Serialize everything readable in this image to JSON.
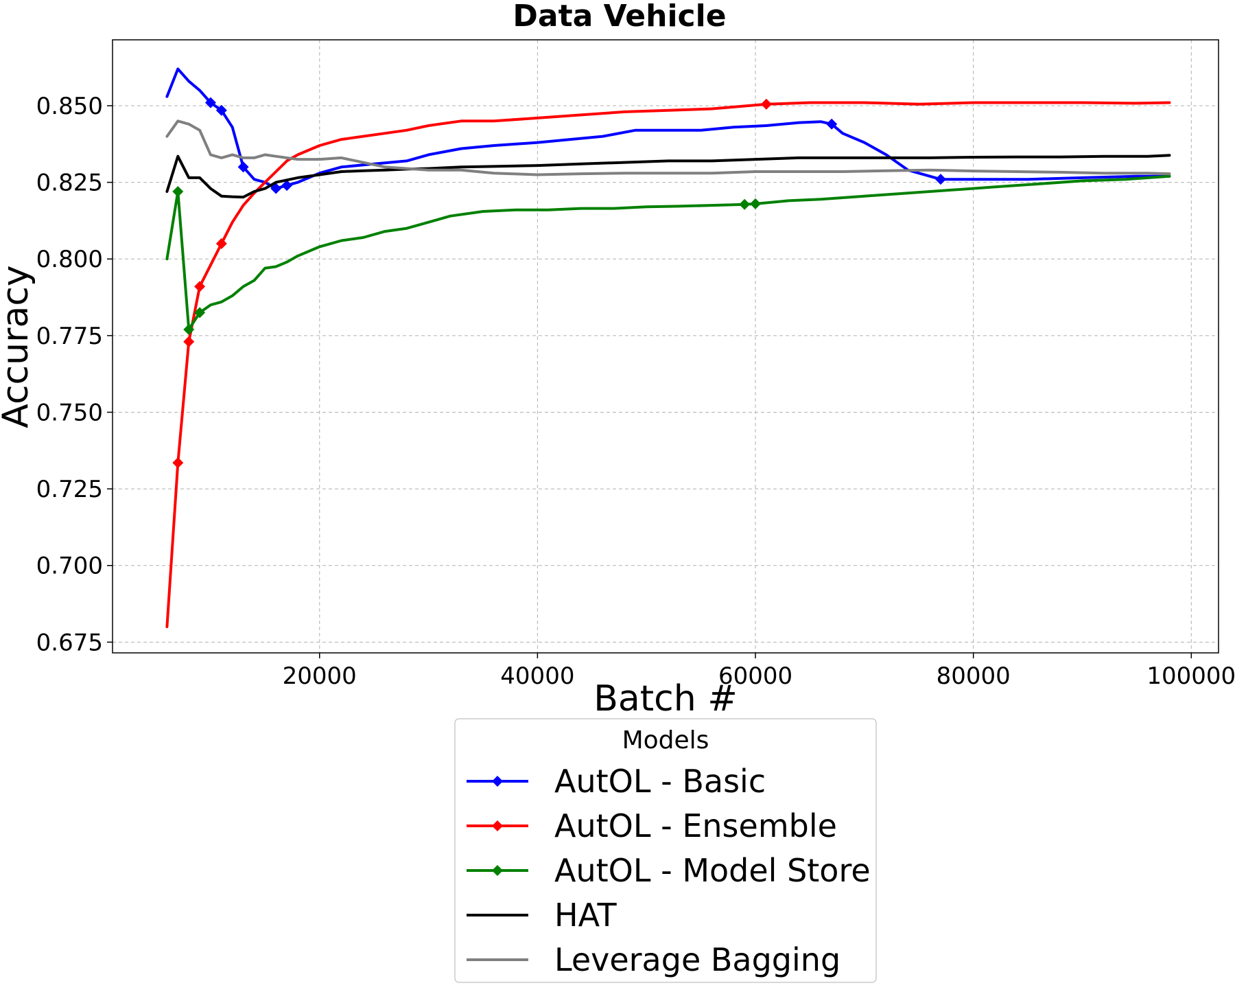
{
  "chart_data": {
    "type": "line",
    "title": "Data Vehicle",
    "xlabel": "Batch #",
    "ylabel": "Accuracy",
    "xlim": [
      1000,
      102500
    ],
    "ylim": [
      0.6715,
      0.8715
    ],
    "xticks": [
      20000,
      40000,
      60000,
      80000,
      100000
    ],
    "xtick_labels": [
      "20000",
      "40000",
      "60000",
      "80000",
      "100000"
    ],
    "yticks": [
      0.675,
      0.7,
      0.725,
      0.75,
      0.775,
      0.8,
      0.825,
      0.85
    ],
    "ytick_labels": [
      "0.675",
      "0.700",
      "0.725",
      "0.750",
      "0.775",
      "0.800",
      "0.825",
      "0.850"
    ],
    "grid": true,
    "legend": {
      "title": "Models",
      "position": "below"
    },
    "series": [
      {
        "name": "AutOL - Basic",
        "color": "#0000ff",
        "marker": "diamond",
        "x": [
          6000,
          7000,
          8000,
          9000,
          10000,
          11000,
          12000,
          13000,
          14000,
          15000,
          16000,
          17000,
          18000,
          20000,
          22000,
          25000,
          28000,
          30000,
          33000,
          36000,
          40000,
          43000,
          46000,
          49000,
          52000,
          55000,
          58000,
          61000,
          64000,
          66000,
          67000,
          68000,
          70000,
          72000,
          74000,
          76000,
          77000,
          80000,
          85000,
          90000,
          95000,
          98000
        ],
        "y": [
          0.853,
          0.862,
          0.858,
          0.855,
          0.851,
          0.8485,
          0.843,
          0.83,
          0.826,
          0.825,
          0.823,
          0.824,
          0.825,
          0.828,
          0.83,
          0.831,
          0.832,
          0.834,
          0.836,
          0.837,
          0.838,
          0.839,
          0.84,
          0.842,
          0.842,
          0.842,
          0.843,
          0.8435,
          0.8445,
          0.8448,
          0.844,
          0.841,
          0.838,
          0.834,
          0.829,
          0.827,
          0.826,
          0.826,
          0.826,
          0.8265,
          0.827,
          0.827
        ],
        "marker_x": [
          10000,
          11000,
          13000,
          16000,
          17000,
          67000,
          77000
        ],
        "marker_y": [
          0.851,
          0.8485,
          0.83,
          0.823,
          0.824,
          0.844,
          0.826
        ]
      },
      {
        "name": "AutOL - Ensemble",
        "color": "#ff0000",
        "marker": "diamond",
        "x": [
          6000,
          7000,
          8000,
          9000,
          10000,
          11000,
          12000,
          13000,
          14000,
          15000,
          16000,
          17000,
          18000,
          20000,
          22000,
          24000,
          26000,
          28000,
          30000,
          33000,
          36000,
          40000,
          44000,
          48000,
          52000,
          56000,
          60000,
          61000,
          65000,
          70000,
          75000,
          80000,
          85000,
          90000,
          95000,
          98000
        ],
        "y": [
          0.68,
          0.7335,
          0.773,
          0.791,
          0.798,
          0.805,
          0.812,
          0.8175,
          0.8215,
          0.825,
          0.8285,
          0.832,
          0.834,
          0.837,
          0.839,
          0.84,
          0.841,
          0.842,
          0.8435,
          0.845,
          0.845,
          0.846,
          0.847,
          0.848,
          0.8485,
          0.849,
          0.8502,
          0.8505,
          0.851,
          0.851,
          0.8505,
          0.851,
          0.851,
          0.851,
          0.8508,
          0.851
        ],
        "marker_x": [
          7000,
          8000,
          9000,
          11000,
          61000
        ],
        "marker_y": [
          0.7335,
          0.773,
          0.791,
          0.805,
          0.8505
        ]
      },
      {
        "name": "AutOL - Model Store",
        "color": "#008000",
        "marker": "diamond",
        "x": [
          6000,
          7000,
          8000,
          9000,
          10000,
          11000,
          12000,
          13000,
          14000,
          15000,
          16000,
          17000,
          18000,
          20000,
          22000,
          24000,
          26000,
          28000,
          30000,
          32000,
          35000,
          38000,
          41000,
          44000,
          47000,
          50000,
          53000,
          56000,
          59000,
          60000,
          63000,
          66000,
          70000,
          74000,
          78000,
          82000,
          86000,
          90000,
          94000,
          98000
        ],
        "y": [
          0.8,
          0.822,
          0.777,
          0.7825,
          0.785,
          0.786,
          0.788,
          0.791,
          0.793,
          0.797,
          0.7975,
          0.799,
          0.801,
          0.804,
          0.806,
          0.807,
          0.809,
          0.81,
          0.812,
          0.814,
          0.8155,
          0.816,
          0.816,
          0.8165,
          0.8165,
          0.817,
          0.8172,
          0.8175,
          0.8178,
          0.818,
          0.819,
          0.8195,
          0.8205,
          0.8215,
          0.8225,
          0.8235,
          0.8245,
          0.8255,
          0.826,
          0.827
        ],
        "marker_x": [
          7000,
          8000,
          9000,
          59000,
          60000
        ],
        "marker_y": [
          0.822,
          0.777,
          0.7825,
          0.8178,
          0.818
        ]
      },
      {
        "name": "HAT",
        "color": "#000000",
        "marker": "none",
        "x": [
          6000,
          7000,
          8000,
          9000,
          10000,
          11000,
          12000,
          13000,
          14000,
          15000,
          16000,
          18000,
          20000,
          22000,
          24000,
          26000,
          28000,
          30000,
          33000,
          36000,
          40000,
          44000,
          48000,
          52000,
          56000,
          60000,
          64000,
          68000,
          72000,
          76000,
          80000,
          84000,
          88000,
          92000,
          96000,
          98000
        ],
        "y": [
          0.822,
          0.8335,
          0.8265,
          0.8265,
          0.823,
          0.8205,
          0.8203,
          0.8202,
          0.822,
          0.823,
          0.825,
          0.8265,
          0.8275,
          0.8285,
          0.8288,
          0.829,
          0.8293,
          0.8295,
          0.83,
          0.8302,
          0.8305,
          0.831,
          0.8315,
          0.832,
          0.832,
          0.8325,
          0.833,
          0.833,
          0.833,
          0.833,
          0.8332,
          0.8333,
          0.8333,
          0.8335,
          0.8335,
          0.8338
        ],
        "marker_x": [],
        "marker_y": []
      },
      {
        "name": "Leverage Bagging",
        "color": "#808080",
        "marker": "none",
        "x": [
          6000,
          7000,
          8000,
          9000,
          10000,
          11000,
          12000,
          13000,
          14000,
          15000,
          16000,
          18000,
          20000,
          22000,
          24000,
          26000,
          28000,
          30000,
          33000,
          36000,
          40000,
          44000,
          48000,
          52000,
          56000,
          60000,
          64000,
          68000,
          72000,
          76000,
          80000,
          84000,
          88000,
          92000,
          96000,
          98000
        ],
        "y": [
          0.84,
          0.845,
          0.844,
          0.842,
          0.834,
          0.833,
          0.834,
          0.833,
          0.833,
          0.834,
          0.8335,
          0.8325,
          0.8325,
          0.833,
          0.8315,
          0.83,
          0.8295,
          0.829,
          0.829,
          0.828,
          0.8275,
          0.8278,
          0.828,
          0.828,
          0.828,
          0.8285,
          0.8285,
          0.8285,
          0.8288,
          0.829,
          0.8287,
          0.8285,
          0.8283,
          0.828,
          0.828,
          0.8278
        ],
        "marker_x": [],
        "marker_y": []
      }
    ]
  }
}
